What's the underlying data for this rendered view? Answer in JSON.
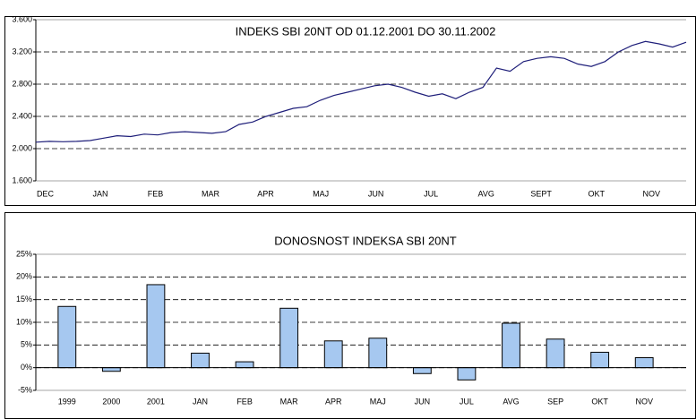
{
  "chart_data": [
    {
      "type": "line",
      "title": "INDEKS SBI 20NT OD 01.12.2001 DO 30.11.2002",
      "months": [
        "DEC",
        "JAN",
        "FEB",
        "MAR",
        "APR",
        "MAJ",
        "JUN",
        "JUL",
        "AVG",
        "SEPT",
        "OKT",
        "NOV"
      ],
      "series": [
        {
          "color": "#1f1f7a",
          "values": [
            2080,
            2090,
            2085,
            2090,
            2100,
            2130,
            2160,
            2150,
            2180,
            2170,
            2200,
            2210,
            2200,
            2190,
            2210,
            2300,
            2330,
            2400,
            2450,
            2500,
            2520,
            2600,
            2660,
            2700,
            2740,
            2780,
            2800,
            2760,
            2700,
            2650,
            2680,
            2620,
            2700,
            2760,
            3000,
            2960,
            3080,
            3120,
            3140,
            3120,
            3050,
            3020,
            3080,
            3200,
            3280,
            3330,
            3300,
            3260,
            3320
          ]
        }
      ],
      "ylim": [
        1600,
        3600
      ],
      "yticks": [
        {
          "value": 1600,
          "label": "1.600"
        },
        {
          "value": 2000,
          "label": "2.000"
        },
        {
          "value": 2400,
          "label": "2.400"
        },
        {
          "value": 2800,
          "label": "2.800"
        },
        {
          "value": 3200,
          "label": "3.200"
        },
        {
          "value": 3600,
          "label": "3.600"
        }
      ],
      "grid": true
    },
    {
      "type": "bar",
      "title": "DONOSNOST INDEKSA SBI 20NT",
      "categories": [
        "1999",
        "2000",
        "2001",
        "JAN",
        "FEB",
        "MAR",
        "APR",
        "MAJ",
        "JUN",
        "JUL",
        "AVG",
        "SEP",
        "OKT",
        "NOV"
      ],
      "values": [
        13.5,
        -0.8,
        18.3,
        3.2,
        1.3,
        13.1,
        5.9,
        6.5,
        -1.3,
        -2.7,
        9.8,
        6.3,
        3.4,
        2.2
      ],
      "color": "#a6c8f0",
      "ylim": [
        -5,
        25
      ],
      "yticks": [
        {
          "value": -5,
          "label": "-5%"
        },
        {
          "value": 0,
          "label": "0%"
        },
        {
          "value": 5,
          "label": "5%"
        },
        {
          "value": 10,
          "label": "10%"
        },
        {
          "value": 15,
          "label": "15%"
        },
        {
          "value": 20,
          "label": "20%"
        },
        {
          "value": 25,
          "label": "25%"
        }
      ],
      "grid": true
    }
  ]
}
